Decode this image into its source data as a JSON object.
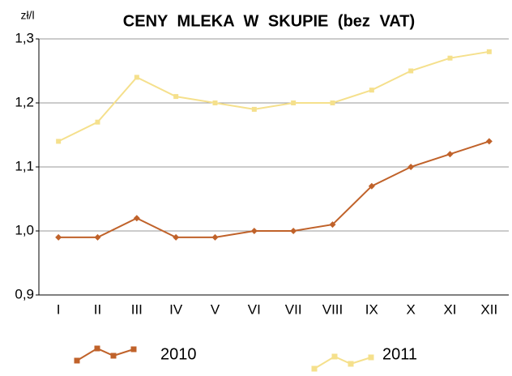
{
  "chart_data": {
    "type": "line",
    "title": "CENY MLEKA W SKUPIE (bez VAT)",
    "y_label": "zł/l",
    "categories": [
      "I",
      "II",
      "III",
      "IV",
      "V",
      "VI",
      "VII",
      "VIII",
      "IX",
      "X",
      "XI",
      "XII"
    ],
    "series": [
      {
        "name": "2010",
        "color": "#c0622a",
        "marker": "diamond",
        "values": [
          0.99,
          0.99,
          1.02,
          0.99,
          0.99,
          1.0,
          1.0,
          1.01,
          1.07,
          1.1,
          1.12,
          1.14
        ]
      },
      {
        "name": "2011",
        "color": "#f5e08c",
        "marker": "square",
        "values": [
          1.14,
          1.17,
          1.24,
          1.21,
          1.2,
          1.19,
          1.2,
          1.2,
          1.22,
          1.25,
          1.27,
          1.28
        ]
      }
    ],
    "ylim": [
      0.9,
      1.3
    ],
    "yticks": [
      {
        "value": 0.9,
        "label": "0,9"
      },
      {
        "value": 1.0,
        "label": "1,0"
      },
      {
        "value": 1.1,
        "label": "1,1"
      },
      {
        "value": 1.2,
        "label": "1,2"
      },
      {
        "value": 1.3,
        "label": "1,3"
      }
    ],
    "grid": true,
    "legend": "bottom"
  }
}
